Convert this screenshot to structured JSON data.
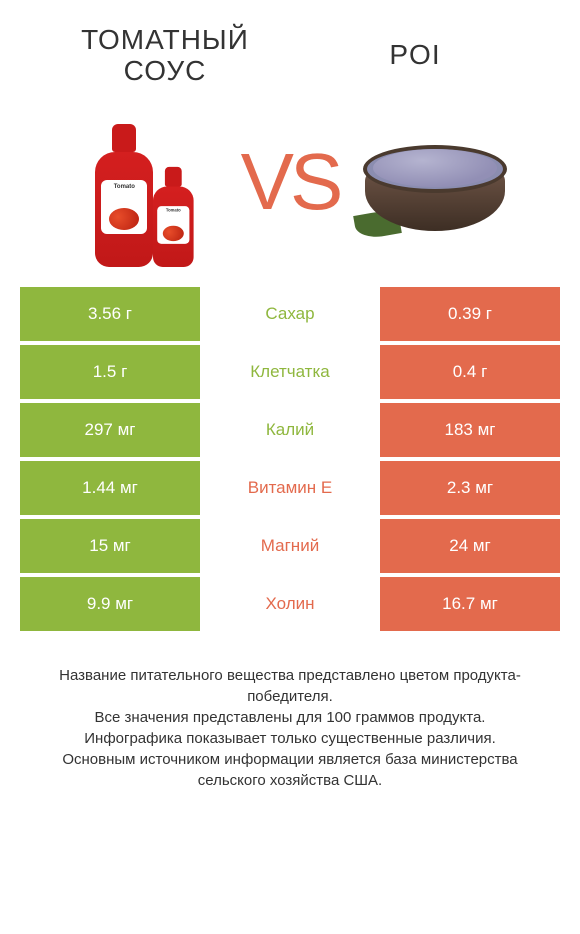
{
  "header": {
    "title_left_line1": "ТОМАТНЫЙ",
    "title_left_line2": "СОУС",
    "title_right": "POI",
    "vs_label": "VS"
  },
  "colors": {
    "left_product": "#8fb73e",
    "right_product": "#e36a4d",
    "background": "#ffffff",
    "text": "#333333"
  },
  "rows": [
    {
      "nutrient": "Сахар",
      "left": "3.56 г",
      "right": "0.39 г",
      "winner": "left"
    },
    {
      "nutrient": "Клетчатка",
      "left": "1.5 г",
      "right": "0.4 г",
      "winner": "left"
    },
    {
      "nutrient": "Калий",
      "left": "297 мг",
      "right": "183 мг",
      "winner": "left"
    },
    {
      "nutrient": "Витамин E",
      "left": "1.44 мг",
      "right": "2.3 мг",
      "winner": "right"
    },
    {
      "nutrient": "Магний",
      "left": "15 мг",
      "right": "24 мг",
      "winner": "right"
    },
    {
      "nutrient": "Холин",
      "left": "9.9 мг",
      "right": "16.7 мг",
      "winner": "right"
    }
  ],
  "footer": {
    "line1": "Название питательного вещества представлено цветом продукта-победителя.",
    "line2": "Все значения представлены для 100 граммов продукта.",
    "line3": "Инфографика показывает только существенные различия.",
    "line4": "Основным источником информации является база министерства сельского хозяйства США."
  },
  "bottle_label": "Tomato"
}
